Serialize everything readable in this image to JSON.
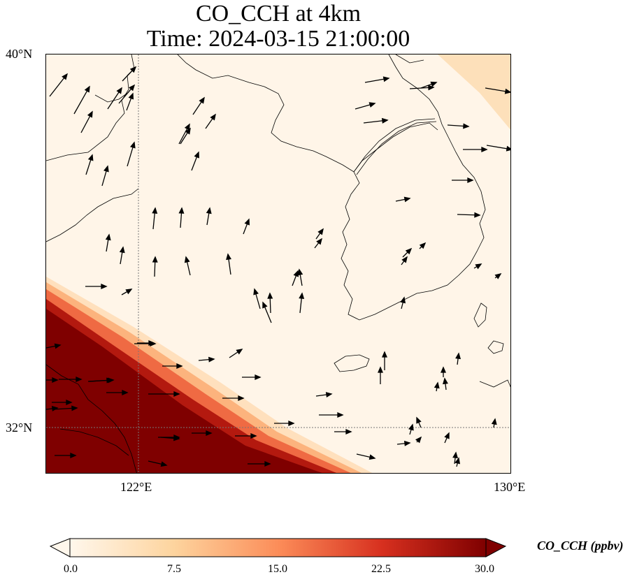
{
  "figure": {
    "title_line1": "CO_CCH at 4km",
    "title_line2": "Time: 2024-03-15 21:00:00"
  },
  "axes": {
    "lat_ticks": [
      "40°N",
      "32°N"
    ],
    "lon_ticks": [
      "122°E",
      "130°E"
    ]
  },
  "colorbar": {
    "label": "CO_CCH (ppbv)",
    "ticks": [
      "0.0",
      "7.5",
      "15.0",
      "22.5",
      "30.0"
    ],
    "min": 0,
    "max": 30,
    "colors": [
      "#fff7ec",
      "#fdd49e",
      "#fc8d59",
      "#d7301f",
      "#7f0000"
    ],
    "extend": "both"
  },
  "map": {
    "colormap": "OrRd",
    "gridlines": "dotted",
    "wind_vectors": true
  }
}
